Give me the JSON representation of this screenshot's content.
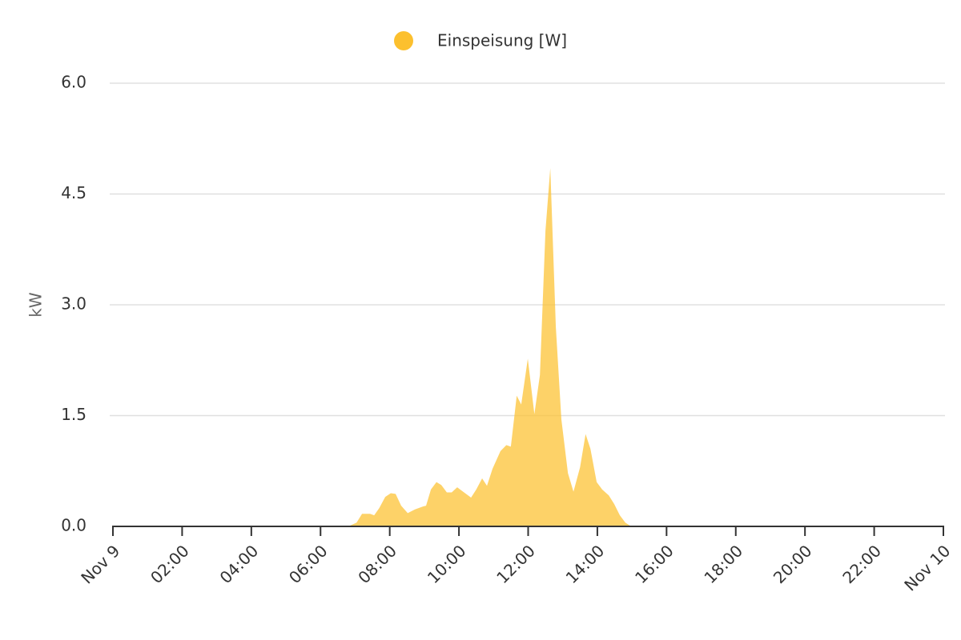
{
  "chart_data": {
    "type": "area",
    "y_label": "kW",
    "x": [
      0,
      6.8,
      7.04,
      7.2,
      7.43,
      7.55,
      7.7,
      7.87,
      8.03,
      8.17,
      8.33,
      8.52,
      8.73,
      8.96,
      9.05,
      9.19,
      9.35,
      9.49,
      9.65,
      9.79,
      9.95,
      10.12,
      10.35,
      10.5,
      10.67,
      10.81,
      10.97,
      11.2,
      11.37,
      11.5,
      11.67,
      11.8,
      11.99,
      12.18,
      12.34,
      12.5,
      12.64,
      12.8,
      12.96,
      13.15,
      13.31,
      13.5,
      13.66,
      13.8,
      13.98,
      14.14,
      14.33,
      14.49,
      14.65,
      14.81,
      14.98,
      24
    ],
    "series": [
      {
        "name": "Einspeisung [W]",
        "color": "#fcc02e",
        "values": [
          0,
          0,
          0.05,
          0.17,
          0.17,
          0.15,
          0.25,
          0.4,
          0.45,
          0.44,
          0.28,
          0.18,
          0.23,
          0.27,
          0.28,
          0.5,
          0.6,
          0.56,
          0.46,
          0.46,
          0.53,
          0.47,
          0.39,
          0.5,
          0.65,
          0.55,
          0.78,
          1.02,
          1.1,
          1.08,
          1.77,
          1.65,
          2.27,
          1.52,
          2.05,
          4.0,
          4.85,
          2.7,
          1.45,
          0.72,
          0.47,
          0.8,
          1.25,
          1.05,
          0.6,
          0.5,
          0.42,
          0.3,
          0.15,
          0.05,
          0,
          0
        ]
      }
    ],
    "xlim": [
      0,
      24
    ],
    "xticks": [
      {
        "value": 0,
        "label": "Nov 9"
      },
      {
        "value": 2,
        "label": "02:00"
      },
      {
        "value": 4,
        "label": "04:00"
      },
      {
        "value": 6,
        "label": "06:00"
      },
      {
        "value": 8,
        "label": "08:00"
      },
      {
        "value": 10,
        "label": "10:00"
      },
      {
        "value": 12,
        "label": "12:00"
      },
      {
        "value": 14,
        "label": "14:00"
      },
      {
        "value": 16,
        "label": "16:00"
      },
      {
        "value": 18,
        "label": "18:00"
      },
      {
        "value": 20,
        "label": "20:00"
      },
      {
        "value": 22,
        "label": "22:00"
      },
      {
        "value": 24,
        "label": "Nov 10"
      }
    ],
    "ylim": [
      0,
      6
    ],
    "yticks": [
      {
        "value": 0,
        "label": "0.0"
      },
      1.5,
      {
        "value": 3,
        "label": "3.0"
      },
      4.5,
      {
        "value": 6,
        "label": "6.0"
      }
    ],
    "grid": true,
    "legend": "top"
  }
}
